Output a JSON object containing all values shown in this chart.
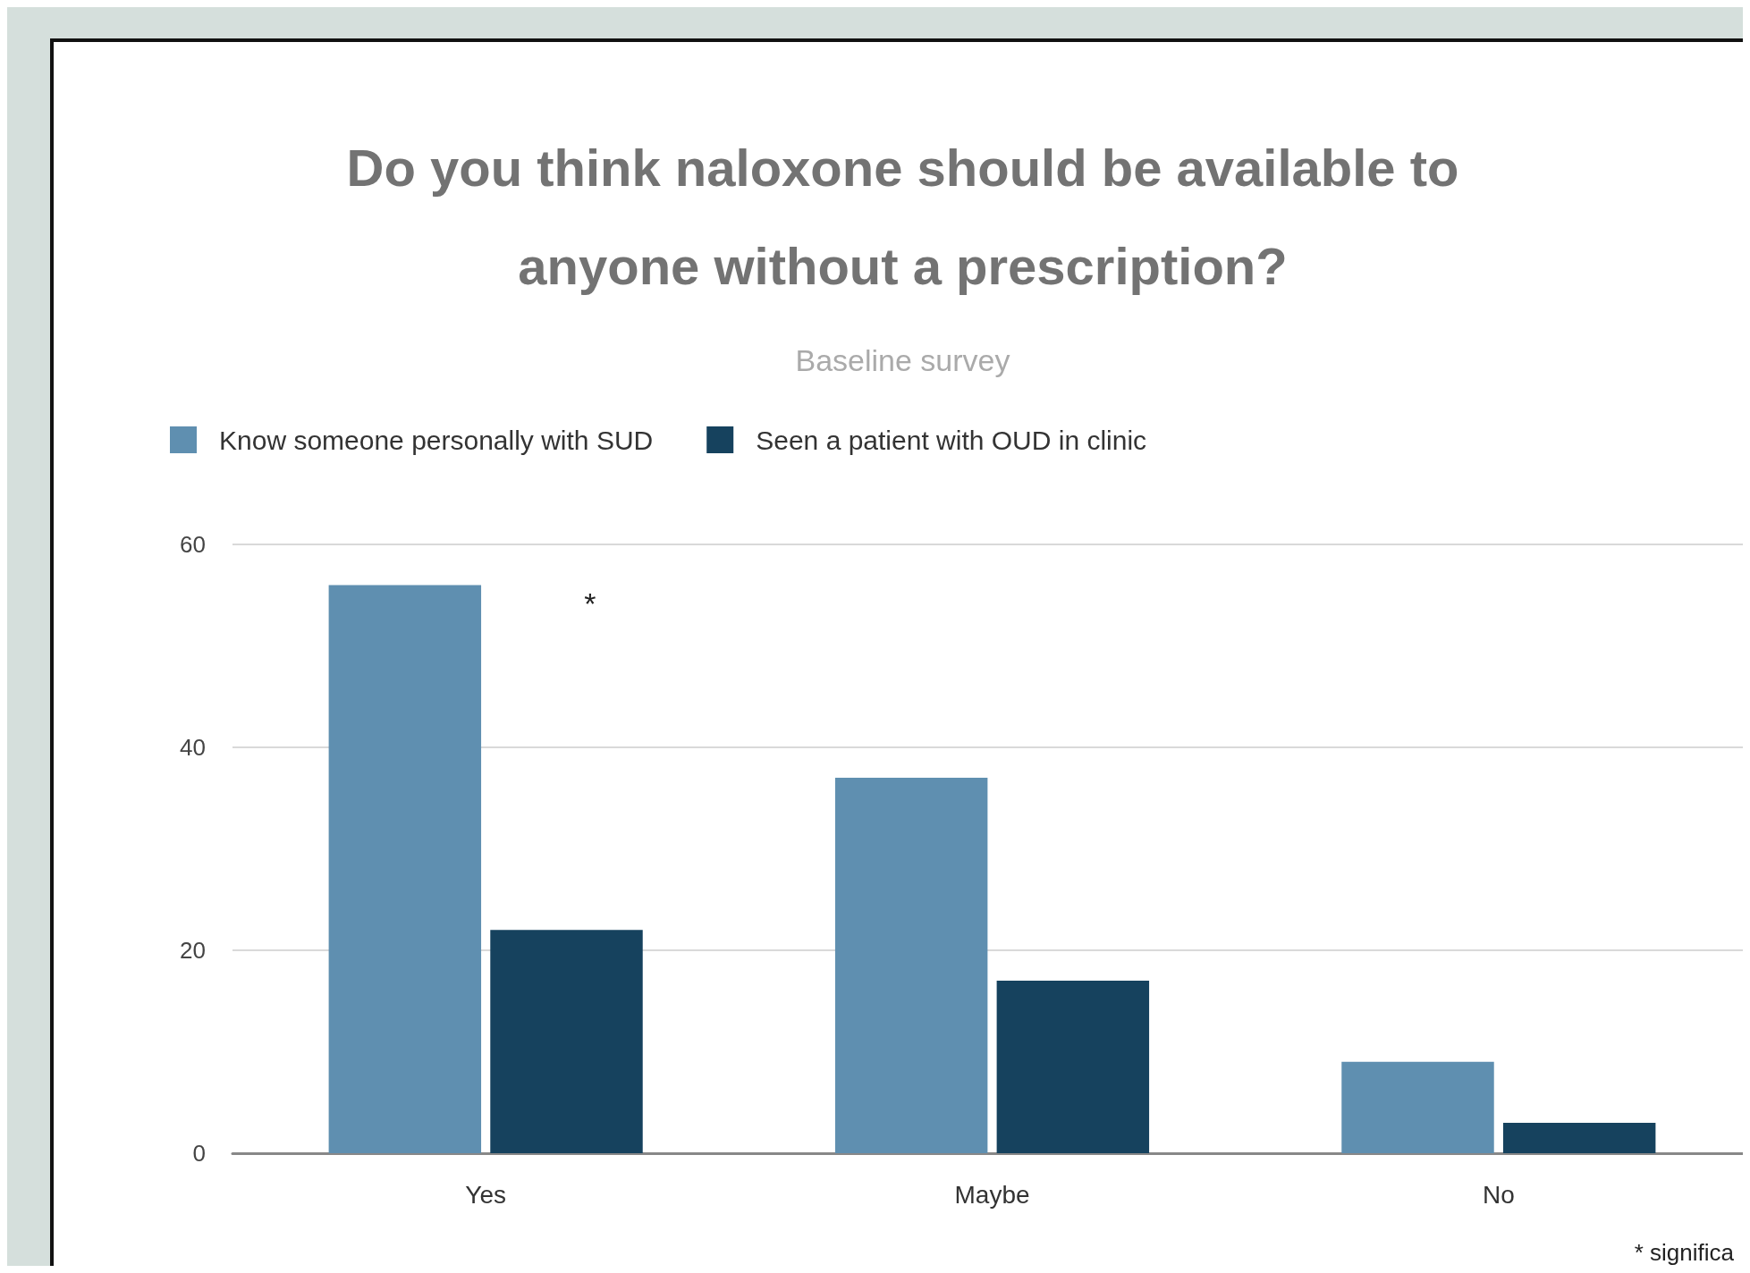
{
  "chart_data": {
    "type": "bar",
    "title": "Do you think naloxone should be available to\nanyone without a prescription?",
    "subtitle": "Baseline survey",
    "categories": [
      "Yes",
      "Maybe",
      "No"
    ],
    "series": [
      {
        "name": "Know someone personally with SUD",
        "color": "#5f8fb0",
        "values": [
          56,
          37,
          9
        ]
      },
      {
        "name": "Seen a patient with OUD in clinic",
        "color": "#16425e",
        "values": [
          22,
          17,
          3
        ]
      }
    ],
    "ylim": [
      0,
      60
    ],
    "yticks": [
      0,
      20,
      40,
      60
    ],
    "grid": "y",
    "legend": "top left",
    "annotations": [
      "*",
      "* significa"
    ]
  }
}
